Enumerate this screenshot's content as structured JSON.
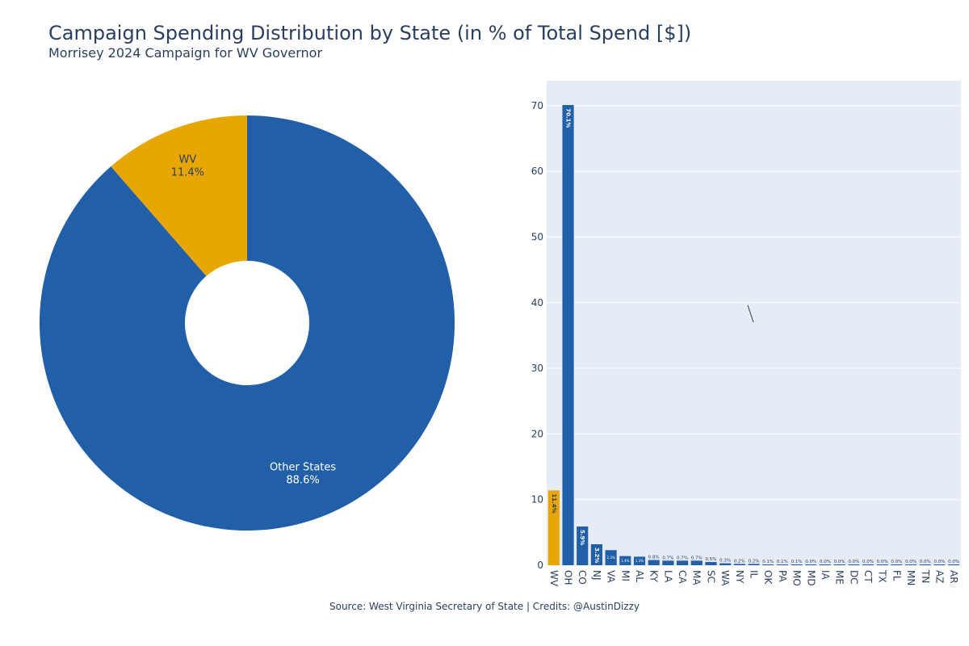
{
  "header": {
    "title": "Campaign Spending Distribution by State (in % of Total Spend [$])",
    "subtitle": "Morrisey 2024 Campaign for WV Governor"
  },
  "footer": {
    "source": "Source: West Virginia Secretary of State | Credits: @AustinDizzy"
  },
  "colors": {
    "wv": "#E8A700",
    "other": "#2160A8",
    "plot_bg": "#E5ECF6",
    "grid": "#ffffff",
    "axis_text": "#2a3f5f"
  },
  "chart_data": [
    {
      "type": "pie",
      "hole": true,
      "labels": [
        "WV",
        "Other States"
      ],
      "values": [
        11.4,
        88.6
      ],
      "value_labels": [
        "11.4%",
        "88.6%"
      ],
      "colors": [
        "#E8A700",
        "#2160A8"
      ]
    },
    {
      "type": "bar",
      "categories": [
        "WV",
        "OH",
        "CO",
        "NJ",
        "VA",
        "MI",
        "AL",
        "KY",
        "LA",
        "CA",
        "MA",
        "SC",
        "WA",
        "NY",
        "IL",
        "OK",
        "PA",
        "MO",
        "MD",
        "IA",
        "ME",
        "DC",
        "CT",
        "TX",
        "FL",
        "MN",
        "TN",
        "AZ",
        "AR"
      ],
      "values": [
        11.4,
        70.1,
        5.9,
        3.2,
        2.3,
        1.4,
        1.3,
        0.8,
        0.7,
        0.7,
        0.7,
        0.5,
        0.3,
        0.2,
        0.2,
        0.1,
        0.1,
        0.1,
        0.0,
        0.0,
        0.0,
        0.0,
        0.0,
        0.0,
        0.0,
        0.0,
        0.0,
        0.0,
        0.0
      ],
      "data_labels": [
        "11.4%",
        "70.1%",
        "5.9%",
        "3.2%",
        "2.3%",
        "1.4%",
        "1.3%",
        "0.8%",
        "0.7%",
        "0.7%",
        "0.7%",
        "0.5%",
        "0.3%",
        "0.2%",
        "0.2%",
        "0.1%",
        "0.1%",
        "0.1%",
        "0.0%",
        "0.0%",
        "0.0%",
        "0.0%",
        "0.0%",
        "0.0%",
        "0.0%",
        "0.0%",
        "0.0%",
        "0.0%",
        "0.0%"
      ],
      "highlight": "WV",
      "yticks": [
        0,
        10,
        20,
        30,
        40,
        50,
        60,
        70
      ],
      "ylim": [
        0,
        73.8
      ],
      "grid": true
    }
  ]
}
